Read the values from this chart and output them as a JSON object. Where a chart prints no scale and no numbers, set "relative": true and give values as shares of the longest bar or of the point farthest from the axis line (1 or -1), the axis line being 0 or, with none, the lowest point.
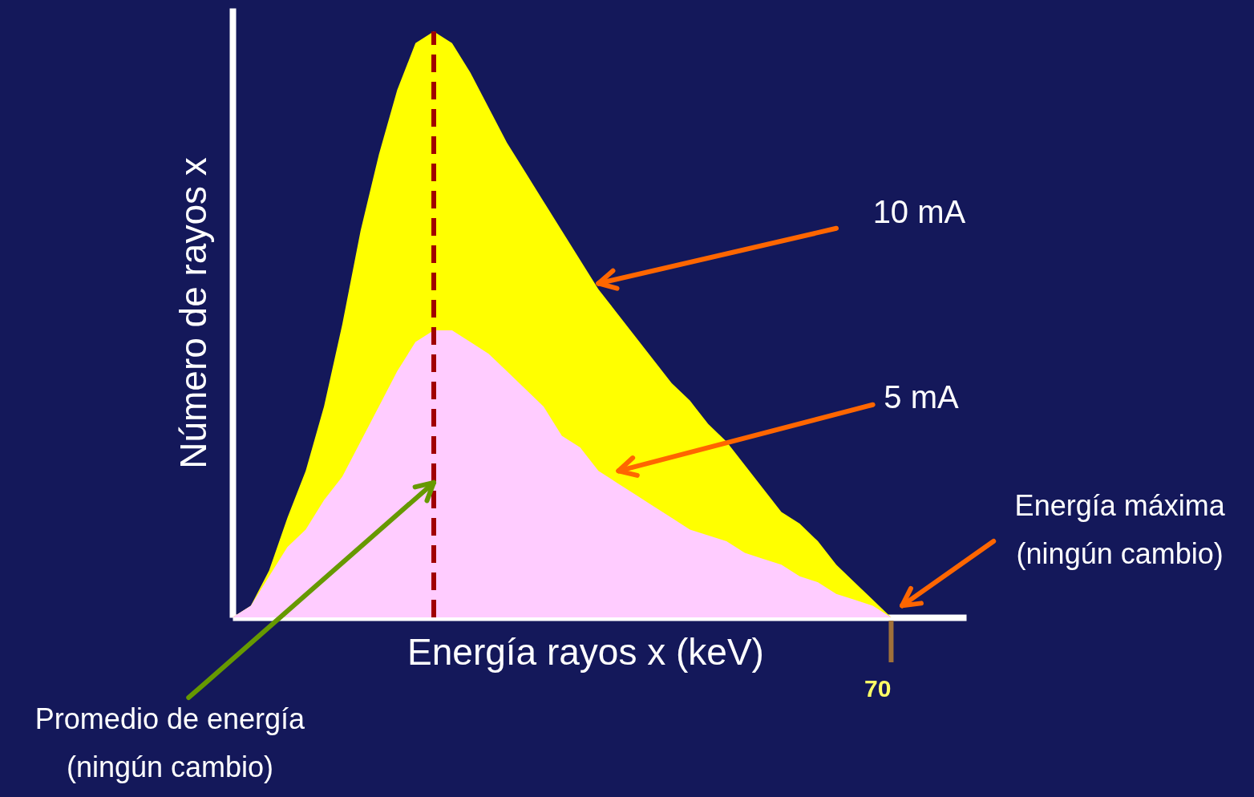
{
  "chart_data": {
    "type": "area",
    "relative": true,
    "xlabel": "Energía  rayos x (keV)",
    "ylabel": "Número de rayos x",
    "categories": [
      null,
      null,
      null,
      null,
      null,
      null,
      null,
      null,
      null,
      null,
      null,
      null,
      null,
      null,
      null,
      null,
      null,
      null,
      null,
      null,
      null,
      null,
      null,
      null,
      null,
      null,
      null,
      null,
      null,
      null,
      null,
      null,
      null,
      null,
      null,
      null,
      null,
      null,
      null,
      null,
      null
    ],
    "series": [
      {
        "color": "#ffff00",
        "values": [
          0,
          0.02,
          0.08,
          0.17,
          0.25,
          0.36,
          0.5,
          0.66,
          0.79,
          0.9,
          0.98,
          1,
          0.98,
          0.93,
          0.87,
          0.81,
          0.76,
          0.71,
          0.66,
          0.61,
          0.56,
          0.52,
          0.48,
          0.44,
          0.4,
          0.37,
          0.33,
          0.3,
          0.26,
          0.22,
          0.18,
          0.16,
          0.13,
          0.09,
          0.06,
          0.03,
          0,
          null,
          null,
          null,
          null
        ]
      },
      {
        "color": "#ffccff",
        "values": [
          0,
          0.02,
          0.07,
          0.12,
          0.15,
          0.2,
          0.24,
          0.3,
          0.36,
          0.42,
          0.47,
          0.49,
          0.49,
          0.47,
          0.45,
          0.42,
          0.39,
          0.36,
          0.31,
          0.29,
          0.25,
          0.23,
          0.21,
          0.19,
          0.17,
          0.15,
          0.14,
          0.13,
          0.11,
          0.1,
          0.09,
          0.07,
          0.06,
          0.04,
          0.03,
          0.02,
          0,
          null,
          null,
          null,
          null
        ]
      }
    ],
    "ref_lines": [
      {
        "axis": "x",
        "color": "#a00000",
        "line_style": "dashed"
      }
    ],
    "annotations": [
      "10 mA",
      "5 mA",
      "Energía máxima\n(ningún cambio)",
      "Promedio de energía\n(ningún cambio)",
      "70"
    ]
  }
}
